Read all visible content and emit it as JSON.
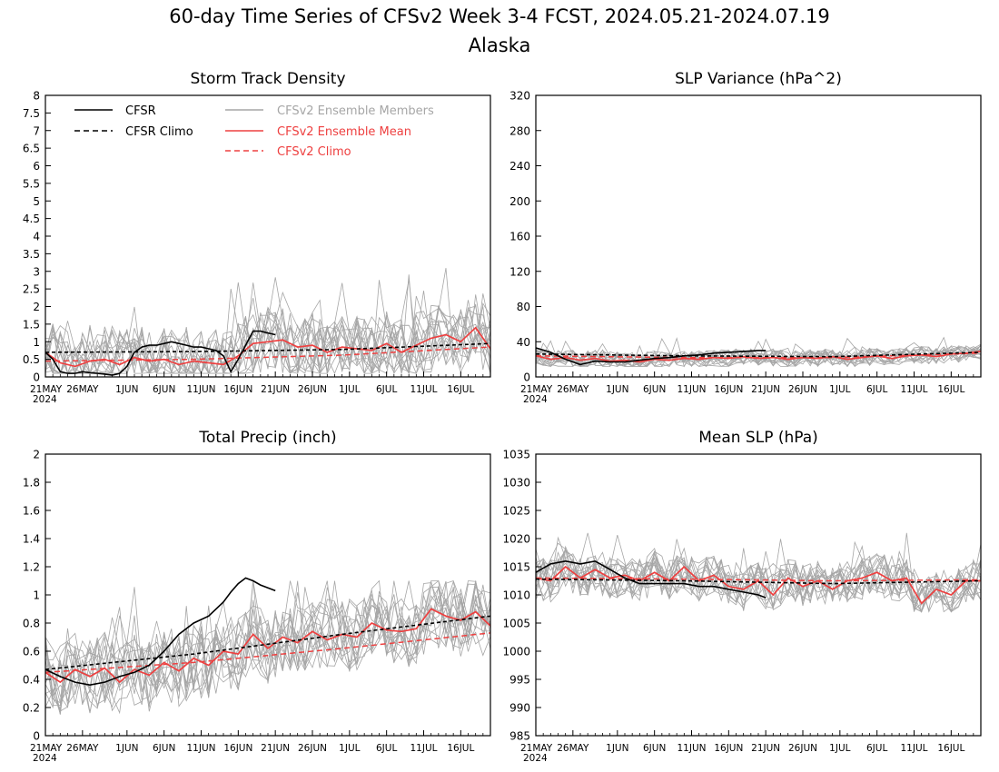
{
  "figure": {
    "title_line1": "60-day Time Series of CFSv2 Week 3-4 FCST, 2024.05.21-2024.07.19",
    "title_line2": "Alaska"
  },
  "colors": {
    "cfsr": "#000000",
    "ensemble_members": "#a6a6a6",
    "ensemble_mean": "#ee4040",
    "cfsv2_climo": "#ee4040"
  },
  "legend": {
    "cfsr": "CFSR",
    "cfsr_climo": "CFSR Climo",
    "members": "CFSv2 Ensemble Members",
    "mean": "CFSv2 Ensemble Mean",
    "cfsv2_climo": "CFSv2 Climo"
  },
  "x_axis": {
    "ticks": [
      "21MAY",
      "26MAY",
      "1JUN",
      "6JUN",
      "11JUN",
      "16JUN",
      "21JUN",
      "26JUN",
      "1JUL",
      "6JUL",
      "11JUL",
      "16JUL"
    ],
    "tick_days": [
      0,
      5,
      11,
      16,
      21,
      26,
      31,
      36,
      41,
      46,
      51,
      56
    ],
    "year_label": "2024",
    "xlim": [
      0,
      60
    ]
  },
  "chart_data": [
    {
      "type": "line",
      "title": "Storm Track Density",
      "ylim": [
        0,
        8
      ],
      "yticks": [
        "0",
        "0.5",
        "1",
        "1.5",
        "2",
        "2.5",
        "3",
        "3.5",
        "4",
        "4.5",
        "5",
        "5.5",
        "6",
        "6.5",
        "7",
        "7.5",
        "8"
      ],
      "yticks_values": [
        0,
        0.5,
        1,
        1.5,
        2,
        2.5,
        3,
        3.5,
        4,
        4.5,
        5,
        5.5,
        6,
        6.5,
        7,
        7.5,
        8
      ],
      "legend_placement": "top",
      "cfsr": {
        "x": [
          0,
          1,
          2,
          3,
          4,
          5,
          6,
          7,
          8,
          9,
          10,
          11,
          12,
          13,
          14,
          15,
          16,
          17,
          18,
          19,
          20,
          21,
          22,
          23,
          24,
          25,
          26,
          27,
          28,
          29,
          30,
          31
        ],
        "y": [
          0.7,
          0.5,
          0.15,
          0.1,
          0.1,
          0.15,
          0.12,
          0.1,
          0.08,
          0.05,
          0.1,
          0.3,
          0.7,
          0.85,
          0.9,
          0.9,
          0.95,
          1.0,
          0.95,
          0.9,
          0.85,
          0.85,
          0.8,
          0.75,
          0.6,
          0.15,
          0.5,
          0.9,
          1.3,
          1.3,
          1.25,
          1.2
        ]
      },
      "cfsr_climo": {
        "x": [
          0,
          20,
          40,
          60
        ],
        "y": [
          0.7,
          0.72,
          0.78,
          0.95
        ]
      },
      "cfsv2_climo": {
        "x": [
          0,
          20,
          40,
          60
        ],
        "y": [
          0.45,
          0.5,
          0.62,
          0.85
        ]
      },
      "mean": {
        "x": [
          0,
          2,
          4,
          6,
          8,
          10,
          12,
          14,
          16,
          18,
          20,
          22,
          24,
          26,
          28,
          30,
          32,
          34,
          36,
          38,
          40,
          42,
          44,
          46,
          48,
          50,
          52,
          54,
          56,
          58,
          60
        ],
        "y": [
          0.7,
          0.4,
          0.3,
          0.45,
          0.5,
          0.35,
          0.55,
          0.45,
          0.5,
          0.35,
          0.45,
          0.4,
          0.35,
          0.6,
          0.95,
          1.0,
          1.05,
          0.85,
          0.9,
          0.7,
          0.85,
          0.8,
          0.75,
          0.95,
          0.7,
          0.9,
          1.1,
          1.2,
          1.0,
          1.4,
          0.8
        ]
      },
      "members_range": [
        0.1,
        3.6
      ]
    },
    {
      "type": "line",
      "title": "SLP Variance (hPa^2)",
      "ylim": [
        0,
        320
      ],
      "yticks": [
        "0",
        "40",
        "80",
        "120",
        "160",
        "200",
        "240",
        "280",
        "320"
      ],
      "yticks_values": [
        0,
        40,
        80,
        120,
        160,
        200,
        240,
        280,
        320
      ],
      "cfsr": {
        "x": [
          0,
          2,
          4,
          6,
          8,
          10,
          12,
          14,
          16,
          18,
          20,
          22,
          24,
          26,
          28,
          30,
          31
        ],
        "y": [
          33,
          28,
          20,
          14,
          18,
          17,
          17,
          19,
          21,
          22,
          24,
          25,
          27,
          28,
          29,
          30,
          30
        ]
      },
      "cfsr_climo": {
        "x": [
          0,
          20,
          40,
          60
        ],
        "y": [
          26,
          24,
          23,
          28
        ]
      },
      "cfsv2_climo": {
        "x": [
          0,
          20,
          40,
          60
        ],
        "y": [
          24,
          22,
          22,
          27
        ]
      },
      "mean": {
        "x": [
          0,
          2,
          4,
          6,
          8,
          10,
          12,
          14,
          16,
          18,
          20,
          22,
          24,
          26,
          28,
          30,
          32,
          34,
          36,
          38,
          40,
          42,
          44,
          46,
          48,
          50,
          52,
          54,
          56,
          58,
          60
        ],
        "y": [
          24,
          20,
          22,
          19,
          21,
          18,
          19,
          17,
          20,
          19,
          21,
          20,
          22,
          21,
          23,
          21,
          22,
          20,
          22,
          21,
          23,
          20,
          22,
          24,
          21,
          24,
          25,
          23,
          26,
          27,
          29
        ]
      },
      "members_range": [
        12,
        48
      ]
    },
    {
      "type": "line",
      "title": "Total Precip (inch)",
      "ylim": [
        0,
        2
      ],
      "yticks": [
        "0",
        "0.2",
        "0.4",
        "0.6",
        "0.8",
        "1",
        "1.2",
        "1.4",
        "1.6",
        "1.8",
        "2"
      ],
      "yticks_values": [
        0,
        0.2,
        0.4,
        0.6,
        0.8,
        1.0,
        1.2,
        1.4,
        1.6,
        1.8,
        2.0
      ],
      "cfsr": {
        "x": [
          0,
          2,
          4,
          6,
          8,
          10,
          12,
          14,
          16,
          18,
          20,
          22,
          24,
          25,
          26,
          27,
          28,
          29,
          30,
          31
        ],
        "y": [
          0.47,
          0.42,
          0.38,
          0.36,
          0.38,
          0.42,
          0.45,
          0.5,
          0.6,
          0.72,
          0.8,
          0.85,
          0.95,
          1.02,
          1.08,
          1.12,
          1.1,
          1.07,
          1.05,
          1.03
        ]
      },
      "cfsr_climo": {
        "x": [
          0,
          20,
          40,
          60
        ],
        "y": [
          0.47,
          0.58,
          0.72,
          0.85
        ]
      },
      "cfsv2_climo": {
        "x": [
          0,
          20,
          40,
          60
        ],
        "y": [
          0.45,
          0.52,
          0.62,
          0.73
        ]
      },
      "mean": {
        "x": [
          0,
          2,
          4,
          6,
          8,
          10,
          12,
          14,
          16,
          18,
          20,
          22,
          24,
          26,
          28,
          30,
          32,
          34,
          36,
          38,
          40,
          42,
          44,
          46,
          48,
          50,
          52,
          54,
          56,
          58,
          60
        ],
        "y": [
          0.45,
          0.38,
          0.47,
          0.42,
          0.48,
          0.38,
          0.47,
          0.43,
          0.52,
          0.46,
          0.55,
          0.5,
          0.6,
          0.58,
          0.72,
          0.62,
          0.7,
          0.66,
          0.74,
          0.68,
          0.72,
          0.7,
          0.8,
          0.75,
          0.74,
          0.76,
          0.9,
          0.85,
          0.82,
          0.88,
          0.78
        ]
      },
      "members_range": [
        0.15,
        1.1
      ]
    },
    {
      "type": "line",
      "title": "Mean SLP (hPa)",
      "ylim": [
        985,
        1035
      ],
      "yticks": [
        "985",
        "990",
        "995",
        "1000",
        "1005",
        "1010",
        "1015",
        "1020",
        "1025",
        "1030",
        "1035"
      ],
      "yticks_values": [
        985,
        990,
        995,
        1000,
        1005,
        1010,
        1015,
        1020,
        1025,
        1030,
        1035
      ],
      "cfsr": {
        "x": [
          0,
          2,
          4,
          6,
          8,
          10,
          12,
          14,
          16,
          18,
          20,
          22,
          24,
          26,
          28,
          30,
          31
        ],
        "y": [
          1014,
          1015.5,
          1016,
          1015.5,
          1016,
          1014.5,
          1013,
          1012,
          1012,
          1012,
          1012,
          1011.5,
          1011.5,
          1011,
          1010.5,
          1010,
          1009.5
        ]
      },
      "cfsr_climo": {
        "x": [
          0,
          20,
          40,
          60
        ],
        "y": [
          1012.8,
          1012.5,
          1012,
          1012.5
        ]
      },
      "cfsv2_climo": {
        "x": [
          0,
          20,
          40,
          60
        ],
        "y": [
          1013,
          1012.8,
          1012.5,
          1012.7
        ]
      },
      "mean": {
        "x": [
          0,
          2,
          4,
          6,
          8,
          10,
          12,
          14,
          16,
          18,
          20,
          22,
          24,
          26,
          28,
          30,
          32,
          34,
          36,
          38,
          40,
          42,
          44,
          46,
          48,
          50,
          52,
          54,
          56,
          58,
          60
        ],
        "y": [
          1013,
          1012.5,
          1015,
          1013,
          1014.5,
          1013,
          1013.5,
          1012.5,
          1014,
          1012.5,
          1015,
          1012.5,
          1013.5,
          1011.5,
          1011,
          1012.5,
          1010,
          1013,
          1011.5,
          1012.5,
          1011,
          1012.5,
          1013,
          1014,
          1012.5,
          1013,
          1008.5,
          1011,
          1010,
          1012.5,
          1012.5
        ]
      },
      "members_range": [
        1007,
        1021
      ]
    }
  ]
}
